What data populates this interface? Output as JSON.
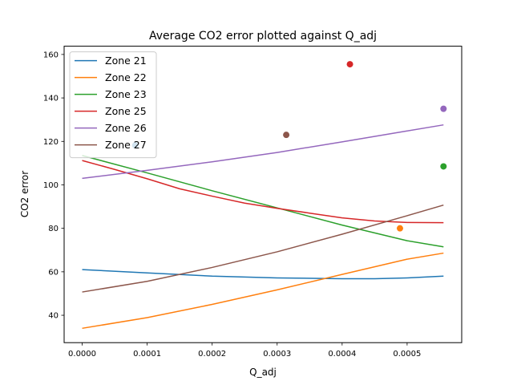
{
  "chart_data": {
    "type": "line",
    "title": "Average CO2 error plotted against Q_adj",
    "xlabel": "Q_adj",
    "ylabel": "CO2 error",
    "xlim": [
      -2.78e-05,
      0.000584
    ],
    "ylim": [
      27.4,
      163.8
    ],
    "xticks": [
      0,
      0.0001,
      0.0002,
      0.0003,
      0.0004,
      0.0005
    ],
    "xtick_labels": [
      "0.0000",
      "0.0001",
      "0.0002",
      "0.0003",
      "0.0004",
      "0.0005"
    ],
    "yticks": [
      40,
      60,
      80,
      100,
      120,
      140,
      160
    ],
    "ytick_labels": [
      "40",
      "60",
      "80",
      "100",
      "120",
      "140",
      "160"
    ],
    "grid": false,
    "legend_position": "upper left",
    "series": [
      {
        "name": "Zone 21",
        "color": "#1f77b4",
        "x": [
          0,
          0.0001,
          0.0002,
          0.0003,
          0.0004,
          0.00045,
          0.0005,
          0.000556
        ],
        "y": [
          61.0,
          59.5,
          58.0,
          57.2,
          56.8,
          56.8,
          57.2,
          58.0
        ],
        "point": {
          "x": 8.16e-05,
          "y": 118.2
        }
      },
      {
        "name": "Zone 22",
        "color": "#ff7f0e",
        "x": [
          0,
          0.0001,
          0.0002,
          0.0003,
          0.0004,
          0.0005,
          0.000556
        ],
        "y": [
          34.0,
          38.9,
          45.0,
          51.7,
          58.8,
          65.8,
          68.6
        ],
        "point": {
          "x": 0.000489,
          "y": 80.0
        }
      },
      {
        "name": "Zone 23",
        "color": "#2ca02c",
        "x": [
          0,
          0.0001,
          0.0002,
          0.0003,
          0.0004,
          0.0005,
          0.000556
        ],
        "y": [
          113.5,
          105.5,
          97.3,
          89.4,
          81.5,
          74.3,
          71.5
        ],
        "point": {
          "x": 0.000556,
          "y": 108.5
        }
      },
      {
        "name": "Zone 25",
        "color": "#d62728",
        "x": [
          0,
          5e-05,
          0.0001,
          0.00015,
          0.0002,
          0.00025,
          0.0003,
          0.00035,
          0.0004,
          0.00045,
          0.0005,
          0.000556
        ],
        "y": [
          111.2,
          107.1,
          102.8,
          98.2,
          94.8,
          91.6,
          89.2,
          87.0,
          84.8,
          83.4,
          82.7,
          82.6
        ],
        "point": {
          "x": 0.000412,
          "y": 155.5
        }
      },
      {
        "name": "Zone 26",
        "color": "#9467bd",
        "x": [
          0,
          0.0001,
          0.0002,
          0.0003,
          0.0004,
          0.0005,
          0.000556
        ],
        "y": [
          103.0,
          106.7,
          110.6,
          114.9,
          119.8,
          124.8,
          127.6
        ],
        "point": {
          "x": 0.000556,
          "y": 135.0
        }
      },
      {
        "name": "Zone 27",
        "color": "#8c564b",
        "x": [
          0,
          0.0001,
          0.0002,
          0.0003,
          0.0004,
          0.0005,
          0.000556
        ],
        "y": [
          50.7,
          55.6,
          62.0,
          69.2,
          77.3,
          85.8,
          90.7
        ],
        "point": {
          "x": 0.000314,
          "y": 123.0
        }
      }
    ]
  }
}
